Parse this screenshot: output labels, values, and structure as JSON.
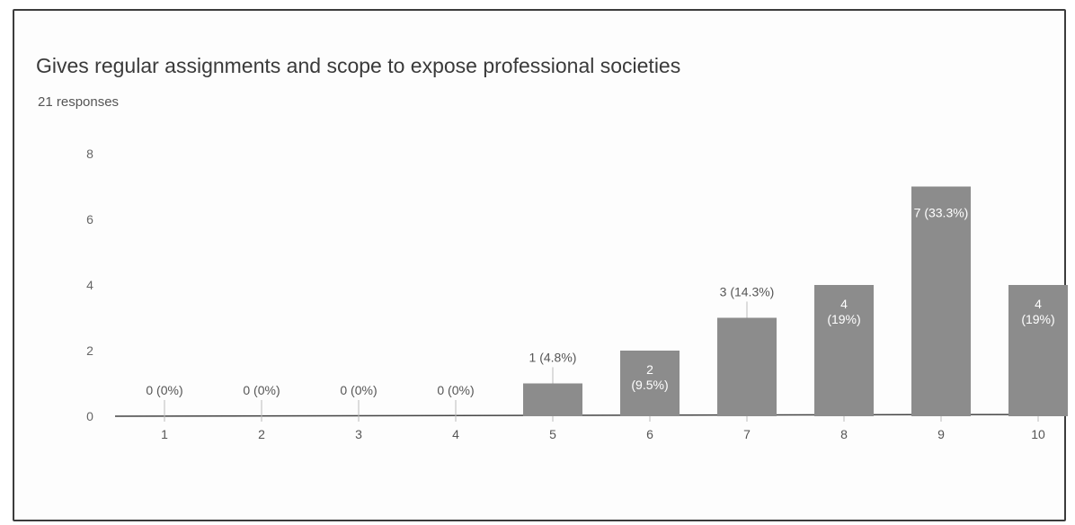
{
  "chart_data": {
    "type": "bar",
    "title": "Gives regular assignments and scope to expose professional societies",
    "subtitle": "21 responses",
    "categories": [
      "1",
      "2",
      "3",
      "4",
      "5",
      "6",
      "7",
      "8",
      "9",
      "10"
    ],
    "values": [
      0,
      0,
      0,
      0,
      1,
      2,
      3,
      4,
      7,
      4
    ],
    "data_labels": [
      "0 (0%)",
      "0 (0%)",
      "0 (0%)",
      "0 (0%)",
      "1 (4.8%)",
      "2 (9.5%)",
      "3 (14.3%)",
      "4 (19%)",
      "7 (33.3%)",
      "4 (19%)"
    ],
    "label_inside": [
      false,
      false,
      false,
      false,
      false,
      true,
      false,
      true,
      true,
      true
    ],
    "label_lines": [
      [
        "0 (0%)"
      ],
      [
        "0 (0%)"
      ],
      [
        "0 (0%)"
      ],
      [
        "0 (0%)"
      ],
      [
        "1 (4.8%)"
      ],
      [
        "2",
        "(9.5%)"
      ],
      [
        "3 (14.3%)"
      ],
      [
        "4",
        "(19%)"
      ],
      [
        "7 (33.3%)"
      ],
      [
        "4",
        "(19%)"
      ]
    ],
    "y_ticks": [
      "0",
      "2",
      "4",
      "6",
      "8"
    ],
    "ylim": [
      0,
      8
    ],
    "xlabel": "",
    "ylabel": "",
    "bar_color": "#8c8c8c",
    "grid": false
  }
}
